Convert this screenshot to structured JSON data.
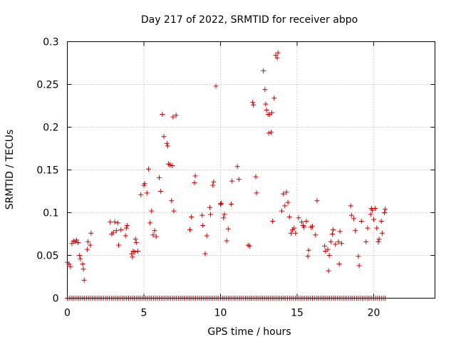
{
  "chart_data": {
    "type": "scatter",
    "title": "Day 217 of 2022, SRMTID for receiver abpo",
    "xlabel": "GPS time / hours",
    "ylabel": "SRMTID / TECUs",
    "xlim": [
      0,
      24
    ],
    "ylim": [
      0,
      0.3
    ],
    "xticks": [
      0,
      5,
      10,
      15,
      20
    ],
    "xtick_labels": [
      "0",
      "5",
      "10",
      "15",
      "20"
    ],
    "yticks": [
      0,
      0.05,
      0.1,
      0.15,
      0.2,
      0.25,
      0.3
    ],
    "ytick_labels": [
      "0",
      "0.05",
      "0.1",
      "0.15",
      "0.2",
      "0.25",
      "0.3"
    ],
    "grid": true,
    "marker": "plus",
    "color": "#cc0000",
    "zero_series": {
      "x_start": 0.0,
      "x_end": 20.8,
      "step": 0.125,
      "y": 0
    },
    "series": [
      {
        "name": "SRMTID",
        "points": [
          [
            0.0,
            0.042
          ],
          [
            0.1,
            0.04
          ],
          [
            0.2,
            0.037
          ],
          [
            0.3,
            0.064
          ],
          [
            0.4,
            0.067
          ],
          [
            0.5,
            0.066
          ],
          [
            0.6,
            0.068
          ],
          [
            0.7,
            0.065
          ],
          [
            0.8,
            0.05
          ],
          [
            0.85,
            0.046
          ],
          [
            1.0,
            0.04
          ],
          [
            1.05,
            0.034
          ],
          [
            1.1,
            0.021
          ],
          [
            1.3,
            0.057
          ],
          [
            1.35,
            0.066
          ],
          [
            1.5,
            0.062
          ],
          [
            1.55,
            0.076
          ],
          [
            2.8,
            0.089
          ],
          [
            2.9,
            0.075
          ],
          [
            3.0,
            0.077
          ],
          [
            3.1,
            0.089
          ],
          [
            3.2,
            0.079
          ],
          [
            3.3,
            0.088
          ],
          [
            3.35,
            0.062
          ],
          [
            3.5,
            0.08
          ],
          [
            3.8,
            0.073
          ],
          [
            3.85,
            0.082
          ],
          [
            3.9,
            0.085
          ],
          [
            4.2,
            0.052
          ],
          [
            4.25,
            0.048
          ],
          [
            4.3,
            0.055
          ],
          [
            4.4,
            0.054
          ],
          [
            4.45,
            0.069
          ],
          [
            4.5,
            0.065
          ],
          [
            4.6,
            0.055
          ],
          [
            4.8,
            0.121
          ],
          [
            5.0,
            0.132
          ],
          [
            5.05,
            0.134
          ],
          [
            5.2,
            0.123
          ],
          [
            5.3,
            0.151
          ],
          [
            5.4,
            0.088
          ],
          [
            5.5,
            0.102
          ],
          [
            5.6,
            0.074
          ],
          [
            5.7,
            0.079
          ],
          [
            5.8,
            0.072
          ],
          [
            6.0,
            0.141
          ],
          [
            6.1,
            0.125
          ],
          [
            6.2,
            0.215
          ],
          [
            6.3,
            0.189
          ],
          [
            6.5,
            0.181
          ],
          [
            6.55,
            0.178
          ],
          [
            6.6,
            0.157
          ],
          [
            6.7,
            0.156
          ],
          [
            6.8,
            0.114
          ],
          [
            6.85,
            0.155
          ],
          [
            6.9,
            0.212
          ],
          [
            6.95,
            0.102
          ],
          [
            7.1,
            0.214
          ],
          [
            8.0,
            0.08
          ],
          [
            8.1,
            0.095
          ],
          [
            8.3,
            0.135
          ],
          [
            8.35,
            0.143
          ],
          [
            8.8,
            0.097
          ],
          [
            8.85,
            0.085
          ],
          [
            9.0,
            0.052
          ],
          [
            9.1,
            0.073
          ],
          [
            9.3,
            0.106
          ],
          [
            9.35,
            0.098
          ],
          [
            9.5,
            0.132
          ],
          [
            9.55,
            0.136
          ],
          [
            9.7,
            0.248
          ],
          [
            10.0,
            0.11
          ],
          [
            10.05,
            0.111
          ],
          [
            10.2,
            0.094
          ],
          [
            10.25,
            0.098
          ],
          [
            10.4,
            0.067
          ],
          [
            10.5,
            0.081
          ],
          [
            10.7,
            0.11
          ],
          [
            10.75,
            0.137
          ],
          [
            11.1,
            0.154
          ],
          [
            11.2,
            0.139
          ],
          [
            11.8,
            0.062
          ],
          [
            11.9,
            0.061
          ],
          [
            12.1,
            0.229
          ],
          [
            12.15,
            0.226
          ],
          [
            12.3,
            0.142
          ],
          [
            12.35,
            0.123
          ],
          [
            12.8,
            0.266
          ],
          [
            12.9,
            0.244
          ],
          [
            12.95,
            0.227
          ],
          [
            13.0,
            0.22
          ],
          [
            13.1,
            0.215
          ],
          [
            13.15,
            0.193
          ],
          [
            13.2,
            0.215
          ],
          [
            13.3,
            0.194
          ],
          [
            13.35,
            0.217
          ],
          [
            13.4,
            0.09
          ],
          [
            13.5,
            0.234
          ],
          [
            13.6,
            0.284
          ],
          [
            13.7,
            0.281
          ],
          [
            13.75,
            0.287
          ],
          [
            14.0,
            0.102
          ],
          [
            14.1,
            0.122
          ],
          [
            14.2,
            0.108
          ],
          [
            14.3,
            0.124
          ],
          [
            14.4,
            0.112
          ],
          [
            14.5,
            0.095
          ],
          [
            14.6,
            0.076
          ],
          [
            14.7,
            0.08
          ],
          [
            14.8,
            0.082
          ],
          [
            14.9,
            0.076
          ],
          [
            15.1,
            0.094
          ],
          [
            15.3,
            0.089
          ],
          [
            15.4,
            0.085
          ],
          [
            15.45,
            0.083
          ],
          [
            15.6,
            0.09
          ],
          [
            15.7,
            0.049
          ],
          [
            15.75,
            0.056
          ],
          [
            15.9,
            0.083
          ],
          [
            16.0,
            0.084
          ],
          [
            16.2,
            0.074
          ],
          [
            16.3,
            0.114
          ],
          [
            16.8,
            0.061
          ],
          [
            16.85,
            0.055
          ],
          [
            17.0,
            0.057
          ],
          [
            17.05,
            0.032
          ],
          [
            17.1,
            0.05
          ],
          [
            17.2,
            0.066
          ],
          [
            17.3,
            0.075
          ],
          [
            17.35,
            0.08
          ],
          [
            17.5,
            0.063
          ],
          [
            17.7,
            0.066
          ],
          [
            17.75,
            0.04
          ],
          [
            17.8,
            0.078
          ],
          [
            17.9,
            0.064
          ],
          [
            18.5,
            0.108
          ],
          [
            18.55,
            0.097
          ],
          [
            18.7,
            0.093
          ],
          [
            18.8,
            0.079
          ],
          [
            19.0,
            0.049
          ],
          [
            19.05,
            0.038
          ],
          [
            19.2,
            0.09
          ],
          [
            19.5,
            0.066
          ],
          [
            19.6,
            0.082
          ],
          [
            19.8,
            0.098
          ],
          [
            19.85,
            0.105
          ],
          [
            19.9,
            0.103
          ],
          [
            20.0,
            0.092
          ],
          [
            20.1,
            0.105
          ],
          [
            20.2,
            0.082
          ],
          [
            20.3,
            0.066
          ],
          [
            20.35,
            0.069
          ],
          [
            20.5,
            0.09
          ],
          [
            20.55,
            0.076
          ],
          [
            20.7,
            0.1
          ],
          [
            20.75,
            0.104
          ]
        ]
      }
    ]
  }
}
